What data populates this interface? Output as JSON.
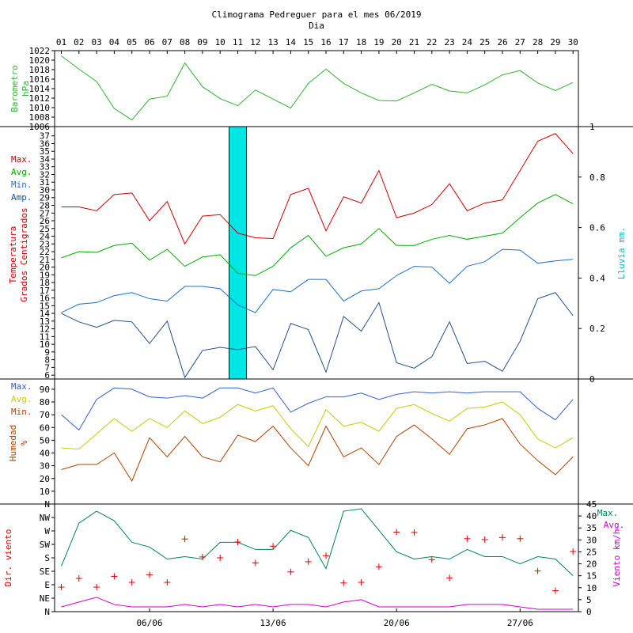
{
  "title": "Climograma Pedreguer para el mes 06/2019",
  "subtitle": "Dia",
  "days": [
    "01",
    "02",
    "03",
    "04",
    "05",
    "06",
    "07",
    "08",
    "09",
    "10",
    "11",
    "12",
    "13",
    "14",
    "15",
    "16",
    "17",
    "18",
    "19",
    "20",
    "21",
    "22",
    "23",
    "24",
    "25",
    "26",
    "27",
    "28",
    "29",
    "30"
  ],
  "week_labels": [
    "06/06",
    "13/06",
    "20/06",
    "27/06"
  ],
  "colors": {
    "max": "#cc0000",
    "avg": "#00aa00",
    "min": "#1e6fc8",
    "amp": "#1f4f8a",
    "rain": "#00e5e5",
    "hum_max": "#3060d0",
    "hum_avg": "#c8c800",
    "hum_min": "#b04000",
    "wind_max": "#008060",
    "wind_avg": "#cc00cc",
    "dir": "#e00000",
    "baro": "#30b030"
  },
  "chart_data": [
    {
      "type": "line",
      "ylabel": "Barometro hPa",
      "ylim": [
        1006,
        1022
      ],
      "yticks": [
        1008,
        1010,
        1012,
        1014,
        1016,
        1018,
        1020,
        1022
      ],
      "ytick_labels": [
        "1008",
        "1010",
        "1012",
        "1014",
        "1016",
        "1018",
        "1020",
        "1022"
      ],
      "series": [
        {
          "values": [
            1020.9,
            1018.1,
            1015.5,
            1009.8,
            1007.4,
            1011.8,
            1012.4,
            1019.4,
            1014.4,
            1011.9,
            1010.4,
            1013.7,
            1011.8,
            1009.9,
            1015.1,
            1018.1,
            1015.1,
            1013.1,
            1011.5,
            1011.4,
            1013.1,
            1014.9,
            1013.5,
            1013.1,
            1014.8,
            1016.9,
            1017.8,
            1015.2,
            1013.6,
            1015.3
          ]
        }
      ]
    },
    {
      "type": "line",
      "ylabel": "Temperatura Grados Centigrados",
      "ylabel_lines": [
        "Temperatura",
        "Grados Centigrados"
      ],
      "y2label": "Lluvia mm.",
      "ylim": [
        5.5,
        38.2
      ],
      "yticks": [
        6,
        7,
        8,
        9,
        10,
        11,
        12,
        13,
        14,
        15,
        16,
        17,
        18,
        19,
        20,
        21,
        22,
        23,
        24,
        25,
        26,
        27,
        28,
        29,
        30,
        31,
        32,
        33,
        34,
        35,
        36,
        37
      ],
      "ytick_labels": [
        "6",
        "7",
        "8",
        "9",
        "10",
        "11",
        "12",
        "13",
        "14",
        "15",
        "16",
        "17",
        "18",
        "19",
        "20",
        "21",
        "22",
        "23",
        "24",
        "25",
        "26",
        "27",
        "28",
        "29",
        "30",
        "31",
        "32",
        "33",
        "34",
        "35",
        "36",
        "37"
      ],
      "y2lim": [
        0,
        1
      ],
      "y2ticks": [
        0,
        0.2,
        0.4,
        0.6,
        0.8,
        1
      ],
      "y2tick_labels": [
        "0",
        "0.2",
        "0.4",
        "0.6",
        "0.8",
        "1"
      ],
      "legend": [
        "Max.",
        "Avg.",
        "Min.",
        "Amp."
      ],
      "series": [
        {
          "name": "Max.",
          "values": [
            27.8,
            27.8,
            27.3,
            29.4,
            29.6,
            26.0,
            28.5,
            23.0,
            26.6,
            26.8,
            24.4,
            23.8,
            23.7,
            29.4,
            30.2,
            24.7,
            29.1,
            28.3,
            32.5,
            26.4,
            27.0,
            28.1,
            30.8,
            27.3,
            28.3,
            28.7,
            32.5,
            36.3,
            37.3,
            34.7
          ]
        },
        {
          "name": "Avg.",
          "values": [
            21.2,
            22.0,
            21.9,
            22.8,
            23.1,
            20.9,
            22.3,
            20.1,
            21.3,
            21.6,
            19.2,
            18.9,
            20.1,
            22.5,
            24.1,
            21.4,
            22.5,
            23.0,
            25.0,
            22.8,
            22.8,
            23.6,
            24.1,
            23.6,
            24.0,
            24.4,
            26.4,
            28.3,
            29.4,
            28.2
          ]
        },
        {
          "name": "Min.",
          "values": [
            14.1,
            15.2,
            15.4,
            16.3,
            16.7,
            15.9,
            15.6,
            17.5,
            17.5,
            17.2,
            15.1,
            14.1,
            17.1,
            16.8,
            18.4,
            18.4,
            15.6,
            16.9,
            17.2,
            18.9,
            20.1,
            20.0,
            17.9,
            20.1,
            20.7,
            22.3,
            22.2,
            20.5,
            20.8,
            21.0
          ]
        },
        {
          "name": "Amp.",
          "values": [
            14.0,
            12.9,
            12.2,
            13.1,
            12.9,
            10.1,
            13.0,
            5.7,
            9.2,
            9.6,
            9.3,
            9.7,
            6.7,
            12.7,
            11.9,
            6.4,
            13.6,
            11.7,
            15.4,
            7.6,
            6.9,
            8.4,
            12.9,
            7.5,
            7.8,
            6.5,
            10.4,
            15.9,
            16.7,
            13.7
          ]
        },
        {
          "name": "Lluvia",
          "type": "bar",
          "values": [
            0,
            0,
            0,
            0,
            0,
            0,
            0,
            0,
            0,
            0,
            1,
            0,
            0,
            0,
            0,
            0,
            0,
            0,
            0,
            0,
            0,
            0,
            0,
            0,
            0,
            0,
            0,
            0,
            0,
            0
          ]
        }
      ]
    },
    {
      "type": "line",
      "ylabel": "Humedad %",
      "ylabel_lines": [
        "Humedad",
        "%"
      ],
      "ylim": [
        0,
        98
      ],
      "yticks": [
        10,
        20,
        30,
        40,
        50,
        60,
        70,
        80,
        90
      ],
      "ytick_labels": [
        "10",
        "20",
        "30",
        "40",
        "50",
        "60",
        "70",
        "80",
        "90"
      ],
      "legend": [
        "Max.",
        "Avg.",
        "Min."
      ],
      "series": [
        {
          "name": "Max.",
          "values": [
            70,
            58,
            82,
            91,
            90,
            84,
            83,
            85,
            83,
            91,
            91,
            87,
            91,
            72,
            79,
            84,
            84,
            87,
            82,
            86,
            88,
            87,
            88,
            87,
            88,
            88,
            88,
            75,
            66,
            82
          ]
        },
        {
          "name": "Avg.",
          "values": [
            44,
            43,
            55,
            67,
            57,
            67,
            60,
            73,
            63,
            68,
            78,
            73,
            77,
            59,
            45,
            74,
            61,
            64,
            57,
            75,
            78,
            71,
            65,
            75,
            76,
            80,
            70,
            51,
            44,
            52
          ]
        },
        {
          "name": "Min.",
          "values": [
            27,
            31,
            31,
            40,
            18,
            52,
            37,
            53,
            37,
            33,
            54,
            49,
            61,
            44,
            30,
            61,
            37,
            44,
            31,
            53,
            62,
            51,
            39,
            59,
            62,
            67,
            47,
            34,
            23,
            37
          ]
        }
      ]
    },
    {
      "type": "line",
      "ylabel": "Dir. viento",
      "ytick_labels": [
        "N",
        "NE",
        "E",
        "SE",
        "S",
        "SW",
        "W",
        "NW",
        "N"
      ],
      "ylim": [
        0,
        360
      ],
      "y2label": "Viento km/h",
      "y2lim": [
        0,
        45
      ],
      "y2ticks": [
        0,
        5,
        10,
        15,
        20,
        25,
        30,
        35,
        40,
        45
      ],
      "y2tick_labels": [
        "0",
        "5",
        "10",
        "15",
        "20",
        "25",
        "30",
        "35",
        "40",
        "45"
      ],
      "legend": [
        "Max.",
        "Avg."
      ],
      "series": [
        {
          "name": "Max.",
          "values": [
            19,
            37,
            42,
            38,
            29,
            27,
            22,
            23,
            22,
            29,
            29,
            26,
            26,
            34,
            31,
            18,
            42,
            43,
            34,
            25,
            22,
            23,
            22,
            26,
            23,
            23,
            20,
            23,
            22,
            15
          ]
        },
        {
          "name": "Avg.",
          "values": [
            2,
            4,
            6,
            3,
            2,
            2,
            2,
            3,
            2,
            3,
            2,
            3,
            2,
            3,
            3,
            2,
            4,
            5,
            2,
            2,
            2,
            2,
            2,
            3,
            3,
            3,
            2,
            1,
            1,
            1
          ]
        },
        {
          "name": "Dir.",
          "type": "scatter",
          "marker": "+",
          "values": [
            82,
            111,
            82,
            118,
            98,
            123,
            98,
            243,
            183,
            180,
            233,
            163,
            219,
            133,
            167,
            187,
            96,
            98,
            150,
            266,
            265,
            174,
            113,
            244,
            241,
            248,
            244,
            136,
            70,
            201
          ]
        }
      ]
    }
  ]
}
